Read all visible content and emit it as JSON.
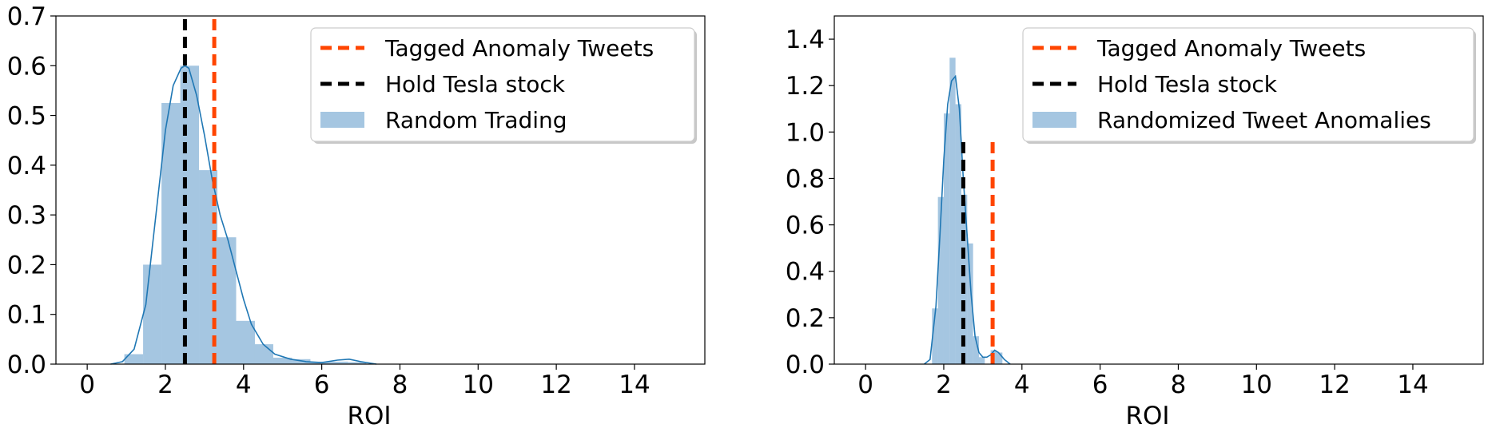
{
  "colors": {
    "hist_fill": "#3f86bf",
    "kde_line": "#1f77b4",
    "tagged_line": "#ff4500",
    "hold_line": "#000000"
  },
  "chart_data": [
    {
      "type": "histogram",
      "xlabel": "ROI",
      "ylabel": "",
      "xlim": [
        -0.8,
        15.8
      ],
      "ylim": [
        0,
        0.7
      ],
      "xticks": [
        0,
        2,
        4,
        6,
        8,
        10,
        12,
        14
      ],
      "yticks": [
        0.0,
        0.1,
        0.2,
        0.3,
        0.4,
        0.5,
        0.6,
        0.7
      ],
      "ytick_labels": [
        "0.0",
        "0.1",
        "0.2",
        "0.3",
        "0.4",
        "0.5",
        "0.6",
        "0.7"
      ],
      "legend_position": "top-right",
      "legend": [
        "Tagged Anomaly Tweets",
        "Hold Tesla stock",
        "Random Trading"
      ],
      "bins": [
        {
          "x0": 0.95,
          "x1": 1.43,
          "density": 0.02
        },
        {
          "x0": 1.43,
          "x1": 1.9,
          "density": 0.2
        },
        {
          "x0": 1.9,
          "x1": 2.38,
          "density": 0.525
        },
        {
          "x0": 2.38,
          "x1": 2.86,
          "density": 0.6
        },
        {
          "x0": 2.86,
          "x1": 3.33,
          "density": 0.39
        },
        {
          "x0": 3.33,
          "x1": 3.81,
          "density": 0.255
        },
        {
          "x0": 3.81,
          "x1": 4.29,
          "density": 0.087
        },
        {
          "x0": 4.29,
          "x1": 4.76,
          "density": 0.04
        },
        {
          "x0": 4.76,
          "x1": 5.24,
          "density": 0.013
        },
        {
          "x0": 5.24,
          "x1": 5.71,
          "density": 0.01
        },
        {
          "x0": 5.71,
          "x1": 6.19,
          "density": 0.005
        },
        {
          "x0": 6.19,
          "x1": 6.67,
          "density": 0.005
        },
        {
          "x0": 6.67,
          "x1": 7.14,
          "density": 0.004
        }
      ],
      "kde": {
        "x": [
          0.6,
          0.9,
          1.2,
          1.5,
          1.8,
          2.0,
          2.2,
          2.4,
          2.5,
          2.6,
          2.8,
          3.0,
          3.2,
          3.4,
          3.6,
          3.8,
          4.0,
          4.2,
          4.5,
          4.8,
          5.2,
          5.6,
          6.0,
          6.4,
          6.7,
          7.0,
          7.4
        ],
        "y": [
          0.0,
          0.005,
          0.03,
          0.12,
          0.33,
          0.47,
          0.56,
          0.595,
          0.6,
          0.595,
          0.54,
          0.46,
          0.37,
          0.3,
          0.25,
          0.19,
          0.13,
          0.08,
          0.04,
          0.02,
          0.01,
          0.005,
          0.003,
          0.008,
          0.01,
          0.005,
          0.0
        ]
      },
      "vlines": [
        {
          "name": "Tagged Anomaly Tweets",
          "x": 3.25,
          "y0": 0,
          "y1": 0.7
        },
        {
          "name": "Hold Tesla stock",
          "x": 2.5,
          "y0": 0,
          "y1": 0.7
        }
      ]
    },
    {
      "type": "histogram",
      "xlabel": "ROI",
      "ylabel": "",
      "xlim": [
        -0.8,
        15.8
      ],
      "ylim": [
        0,
        1.5
      ],
      "xticks": [
        0,
        2,
        4,
        6,
        8,
        10,
        12,
        14
      ],
      "yticks": [
        0.0,
        0.2,
        0.4,
        0.6,
        0.8,
        1.0,
        1.2,
        1.4
      ],
      "ytick_labels": [
        "0.0",
        "0.2",
        "0.4",
        "0.6",
        "0.8",
        "1.0",
        "1.2",
        "1.4"
      ],
      "legend_position": "top-right",
      "legend": [
        "Tagged Anomaly Tweets",
        "Hold Tesla stock",
        "Randomized Tweet Anomalies"
      ],
      "bins": [
        {
          "x0": 1.7,
          "x1": 1.85,
          "density": 0.24
        },
        {
          "x0": 1.85,
          "x1": 2.0,
          "density": 0.72
        },
        {
          "x0": 2.0,
          "x1": 2.15,
          "density": 1.08
        },
        {
          "x0": 2.15,
          "x1": 2.3,
          "density": 1.32
        },
        {
          "x0": 2.3,
          "x1": 2.45,
          "density": 1.12
        },
        {
          "x0": 2.45,
          "x1": 2.6,
          "density": 0.73
        },
        {
          "x0": 2.6,
          "x1": 2.75,
          "density": 0.52
        },
        {
          "x0": 2.75,
          "x1": 2.9,
          "density": 0.12
        },
        {
          "x0": 2.9,
          "x1": 3.05,
          "density": 0.03
        },
        {
          "x0": 3.05,
          "x1": 3.2,
          "density": 0.0
        },
        {
          "x0": 3.2,
          "x1": 3.35,
          "density": 0.06
        },
        {
          "x0": 3.35,
          "x1": 3.5,
          "density": 0.05
        }
      ],
      "kde": {
        "x": [
          1.5,
          1.65,
          1.8,
          1.9,
          2.0,
          2.1,
          2.2,
          2.3,
          2.4,
          2.5,
          2.6,
          2.7,
          2.8,
          2.9,
          3.0,
          3.1,
          3.2,
          3.3,
          3.4,
          3.55,
          3.7
        ],
        "y": [
          0.0,
          0.02,
          0.25,
          0.55,
          0.88,
          1.12,
          1.22,
          1.24,
          1.1,
          0.8,
          0.55,
          0.3,
          0.12,
          0.05,
          0.03,
          0.03,
          0.04,
          0.06,
          0.05,
          0.02,
          0.0
        ]
      },
      "vlines": [
        {
          "name": "Tagged Anomaly Tweets",
          "x": 3.25,
          "y0": 0,
          "y1": 0.98
        },
        {
          "name": "Hold Tesla stock",
          "x": 2.5,
          "y0": 0,
          "y1": 0.98
        }
      ]
    }
  ]
}
